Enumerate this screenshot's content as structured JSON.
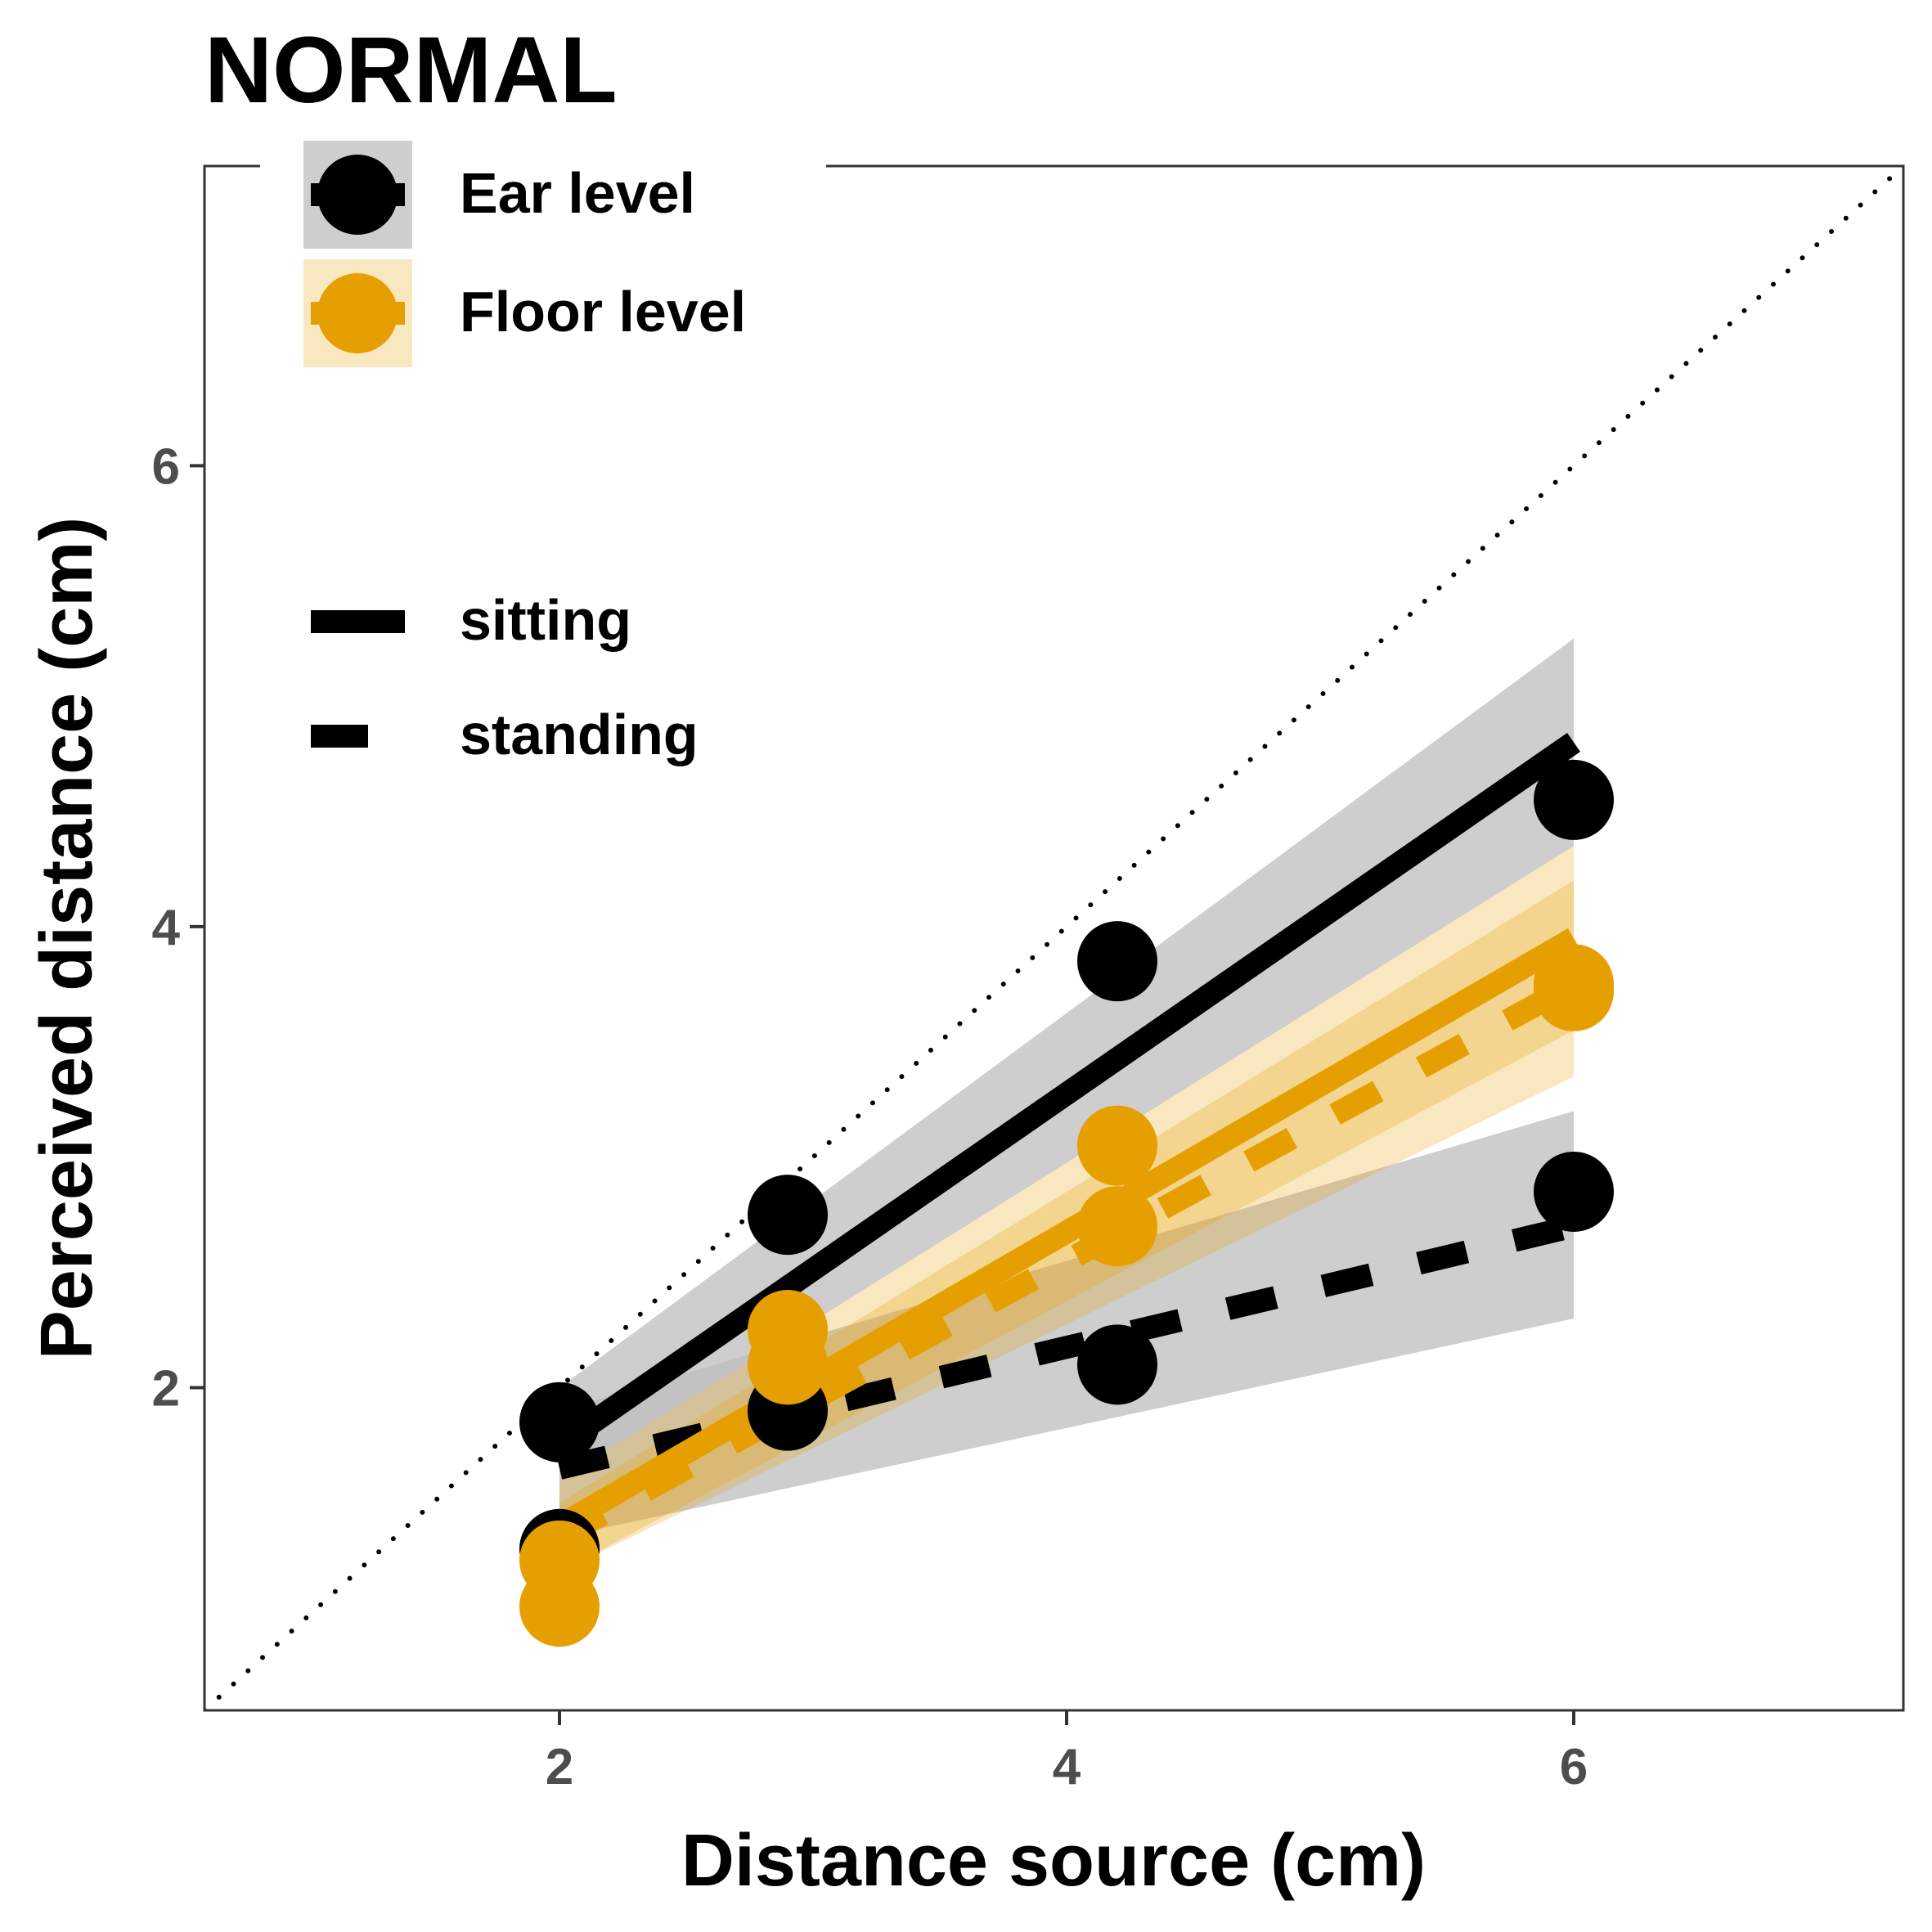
{
  "chart_data": {
    "type": "scatter",
    "title": "NORMAL",
    "xlabel": "Distance source (cm)",
    "ylabel": "Perceived distance (cm)",
    "xlim": [
      0.6,
      7.3
    ],
    "ylim": [
      0.6,
      7.3
    ],
    "x_ticks": [
      2,
      4,
      6
    ],
    "y_ticks": [
      2,
      4,
      6
    ],
    "x_tick_labels": [
      "2",
      "4",
      "6"
    ],
    "y_tick_labels": [
      "2",
      "4",
      "6"
    ],
    "grid": false,
    "reference_line": "identity (y = x), dotted",
    "colors": {
      "ear": "#000000",
      "floor": "#E69F00",
      "ear_band": "#bdbdbd",
      "floor_band": "#E69F00"
    },
    "legend_level": [
      {
        "key": "ear",
        "label": "Ear level"
      },
      {
        "key": "floor",
        "label": "Floor level"
      }
    ],
    "legend_posture": [
      {
        "key": "sitting",
        "label": "sitting"
      },
      {
        "key": "standing",
        "label": "standing"
      }
    ],
    "series": [
      {
        "level": "ear",
        "posture": "sitting",
        "points": [
          [
            2,
            1.85
          ],
          [
            2.9,
            2.75
          ],
          [
            4.2,
            3.85
          ],
          [
            6,
            4.55
          ]
        ],
        "fit": [
          [
            2,
            1.75
          ],
          [
            6,
            4.8
          ]
        ],
        "band_lower": [
          [
            2,
            1.6
          ],
          [
            6,
            4.35
          ]
        ],
        "band_upper": [
          [
            2,
            2.0
          ],
          [
            6,
            5.25
          ]
        ]
      },
      {
        "level": "ear",
        "posture": "standing",
        "points": [
          [
            2,
            1.3
          ],
          [
            2.9,
            1.9
          ],
          [
            4.2,
            2.1
          ],
          [
            6,
            2.85
          ]
        ],
        "fit": [
          [
            2,
            1.65
          ],
          [
            6,
            2.7
          ]
        ],
        "band_lower": [
          [
            2,
            1.35
          ],
          [
            6,
            2.3
          ]
        ],
        "band_upper": [
          [
            2,
            1.9
          ],
          [
            6,
            3.2
          ]
        ]
      },
      {
        "level": "floor",
        "posture": "sitting",
        "points": [
          [
            2,
            1.25
          ],
          [
            2.9,
            2.25
          ],
          [
            4.2,
            3.05
          ],
          [
            6,
            3.75
          ]
        ],
        "fit": [
          [
            2,
            1.4
          ],
          [
            6,
            3.95
          ]
        ],
        "band_lower": [
          [
            2,
            1.2
          ],
          [
            6,
            3.55
          ]
        ],
        "band_upper": [
          [
            2,
            1.6
          ],
          [
            6,
            4.35
          ]
        ]
      },
      {
        "level": "floor",
        "posture": "standing",
        "points": [
          [
            2,
            1.05
          ],
          [
            2.9,
            2.1
          ],
          [
            4.2,
            2.7
          ],
          [
            6,
            3.72
          ]
        ],
        "fit": [
          [
            2,
            1.35
          ],
          [
            6,
            3.75
          ]
        ],
        "band_lower": [
          [
            2,
            1.2
          ],
          [
            6,
            3.35
          ]
        ],
        "band_upper": [
          [
            2,
            1.5
          ],
          [
            6,
            4.2
          ]
        ]
      }
    ]
  }
}
